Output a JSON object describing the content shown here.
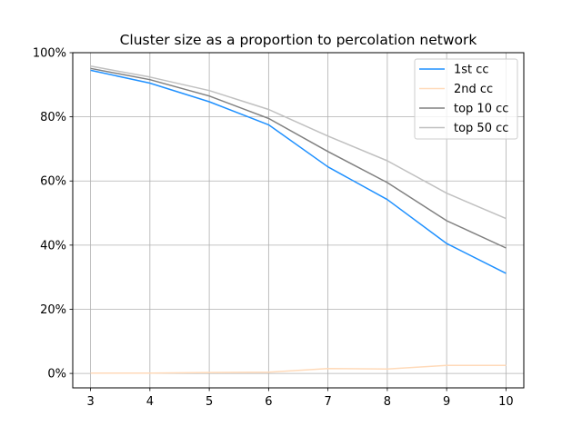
{
  "chart_data": {
    "type": "line",
    "title": "Cluster size as a proportion to percolation network",
    "xlabel": "",
    "ylabel": "",
    "x": [
      3,
      4,
      5,
      6,
      7,
      8,
      9,
      10
    ],
    "xlim": [
      2.7,
      10.3
    ],
    "ylim": [
      -4.5,
      100
    ],
    "yticks": [
      0,
      20,
      40,
      60,
      80,
      100
    ],
    "ytick_labels": [
      "0%",
      "20%",
      "40%",
      "60%",
      "80%",
      "100%"
    ],
    "xtick_labels": [
      "3",
      "4",
      "5",
      "6",
      "7",
      "8",
      "9",
      "10"
    ],
    "grid": true,
    "legend_position": "top-right",
    "series": [
      {
        "name": "1st cc",
        "color": "#1e90ff",
        "values": [
          94.5,
          90.5,
          84.7,
          77.5,
          64.4,
          54.2,
          40.5,
          31.2
        ]
      },
      {
        "name": "2nd cc",
        "color": "#ffdab9",
        "values": [
          0.1,
          0.1,
          0.3,
          0.4,
          1.5,
          1.4,
          2.5,
          2.5
        ]
      },
      {
        "name": "top 10 cc",
        "color": "#808080",
        "values": [
          95.1,
          91.6,
          86.5,
          79.5,
          69.2,
          59.5,
          47.6,
          39.1
        ]
      },
      {
        "name": "top 50 cc",
        "color": "#c0c0c0",
        "values": [
          95.8,
          92.4,
          88.2,
          82.3,
          74.0,
          66.3,
          56.2,
          48.3
        ]
      }
    ]
  }
}
